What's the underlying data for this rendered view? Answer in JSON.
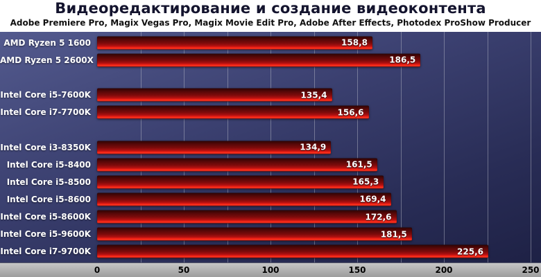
{
  "header": {
    "title": "Видеоредактирование и создание видеоконтента",
    "subtitle": "Adobe Premiere Pro, Magix Vegas Pro, Magix Movie Edit Pro, Adobe After Effects, Photodex ProShow Producer"
  },
  "colors": {
    "background_top": "#535a8e",
    "background_bottom": "#1e2145",
    "bar_dark": "#5c0808",
    "bar_bright": "#ff3a22",
    "axis_strip": "#b0b0b0",
    "label_text": "#ffffff",
    "tick_text": "#000000"
  },
  "chart_data": {
    "type": "bar",
    "orientation": "horizontal",
    "title": "Видеоредактирование и создание видеоконтента",
    "subtitle": "Adobe Premiere Pro, Magix Vegas Pro, Magix Movie Edit Pro, Adobe After Effects, Photodex ProShow Producer",
    "xlabel": "",
    "ylabel": "",
    "xlim": [
      0,
      250
    ],
    "ticks": [
      0,
      50,
      100,
      150,
      200,
      250
    ],
    "minor_tick_step": 25,
    "grid": true,
    "legend": false,
    "rows": [
      {
        "label": "AMD Ryzen 5 1600",
        "value": 158.8,
        "display": "158,8"
      },
      {
        "label": "AMD Ryzen 5 2600X",
        "value": 186.5,
        "display": "186,5"
      },
      {
        "spacer": true
      },
      {
        "label": "Intel Core i5-7600K",
        "value": 135.4,
        "display": "135,4"
      },
      {
        "label": "Intel Core i7-7700K",
        "value": 156.6,
        "display": "156,6"
      },
      {
        "spacer": true
      },
      {
        "label": "Intel Core i3-8350K",
        "value": 134.9,
        "display": "134,9"
      },
      {
        "label": "Intel Core i5-8400",
        "value": 161.5,
        "display": "161,5"
      },
      {
        "label": "Intel Core i5-8500",
        "value": 165.3,
        "display": "165,3"
      },
      {
        "label": "Intel Core i5-8600",
        "value": 169.4,
        "display": "169,4"
      },
      {
        "label": "Intel Core i5-8600K",
        "value": 172.6,
        "display": "172,6"
      },
      {
        "label": "Intel Core i5-9600K",
        "value": 181.5,
        "display": "181,5"
      },
      {
        "label": "Intel Core i7-9700K",
        "value": 225.6,
        "display": "225,6"
      }
    ]
  }
}
